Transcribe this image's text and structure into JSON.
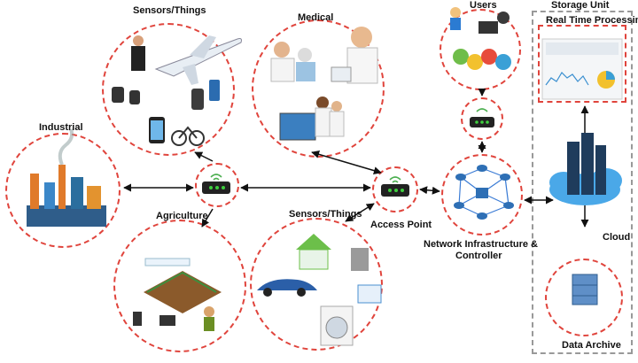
{
  "labels": {
    "sensors_top": "Sensors/Things",
    "medical": "Medical",
    "users": "Users",
    "storage_unit": "Storage Unit",
    "real_time": "Real Time Processing",
    "industrial": "Industrial",
    "agriculture": "Agriculture",
    "sensors_bottom": "Sensors/Things",
    "access_point": "Access Point",
    "network_line1": "Network Infrastructure &",
    "network_line2": "Controller",
    "cloud": "Cloud",
    "data_archive": "Data Archive"
  },
  "colors": {
    "dashed_border": "#e0443c",
    "router_body": "#222222",
    "router_led": "#3ecf3e",
    "wifi": "#4caf50",
    "server": "#1f3c5c",
    "cloud": "#4aa8e8"
  }
}
